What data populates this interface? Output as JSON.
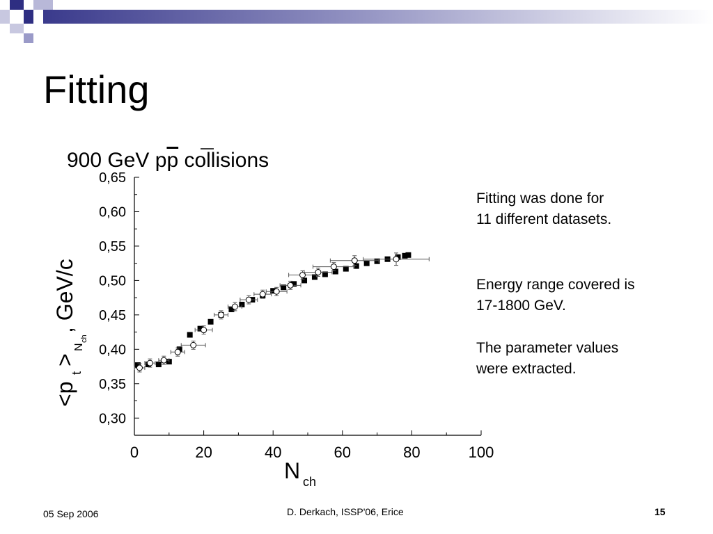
{
  "slide": {
    "title": "Fitting",
    "notes": [
      "Fitting was done for",
      "11 different datasets.",
      "Energy range covered is",
      "17-1800 GeV.",
      "The parameter values",
      "were extracted."
    ],
    "footer": {
      "date": "05 Sep 2006",
      "center": "D. Derkach, ISSP'06, Erice",
      "page": "15"
    },
    "colors": {
      "banner_dark": "#3a3a8c",
      "banner_light": "#c8c8e0"
    }
  },
  "chart_data": {
    "type": "scatter",
    "title": "900 GeV pp collisions",
    "title_overline_on": "p",
    "xlabel": "N",
    "xlabel_sub": "ch",
    "ylabel": "<p",
    "ylabel_sub": "t",
    "ylabel_rest": ">",
    "ylabel_sub2": "N",
    "ylabel_sub3": "ch",
    "ylabel_unit": ", GeV/c",
    "xlim": [
      0,
      100
    ],
    "ylim": [
      0.275,
      0.65
    ],
    "x_ticks": [
      "0",
      "20",
      "40",
      "60",
      "80",
      "100"
    ],
    "y_ticks": [
      "0,30",
      "0,35",
      "0,40",
      "0,45",
      "0,50",
      "0,55",
      "0,60",
      "0,65"
    ],
    "grid": false,
    "series": [
      {
        "marker": "filled-square",
        "points": [
          [
            1,
            0.377
          ],
          [
            4,
            0.378
          ],
          [
            7,
            0.378
          ],
          [
            10,
            0.382
          ],
          [
            13,
            0.4
          ],
          [
            16,
            0.421
          ],
          [
            19,
            0.43
          ],
          [
            22,
            0.44
          ],
          [
            25,
            0.45
          ],
          [
            28,
            0.458
          ],
          [
            31,
            0.465
          ],
          [
            34,
            0.472
          ],
          [
            37,
            0.478
          ],
          [
            40,
            0.485
          ],
          [
            43,
            0.49
          ],
          [
            46,
            0.495
          ],
          [
            49,
            0.5
          ],
          [
            52,
            0.505
          ],
          [
            55,
            0.509
          ],
          [
            58,
            0.513
          ],
          [
            61,
            0.517
          ],
          [
            64,
            0.521
          ],
          [
            67,
            0.525
          ],
          [
            70,
            0.528
          ],
          [
            73,
            0.531
          ],
          [
            76,
            0.534
          ],
          [
            78,
            0.536
          ],
          [
            79,
            0.537
          ]
        ]
      },
      {
        "marker": "open-circle-crossed",
        "points": [
          [
            1.5,
            0.373,
            0.006
          ],
          [
            4.5,
            0.38,
            0.006
          ],
          [
            8.5,
            0.384,
            0.006
          ],
          [
            12.5,
            0.396,
            0.006
          ],
          [
            17,
            0.406,
            0.006
          ],
          [
            20,
            0.428,
            0.006
          ],
          [
            25,
            0.45,
            0.006
          ],
          [
            29,
            0.462,
            0.006
          ],
          [
            33,
            0.472,
            0.006
          ],
          [
            37,
            0.48,
            0.006
          ],
          [
            41,
            0.484,
            0.006
          ],
          [
            45,
            0.493,
            0.006
          ],
          [
            48.5,
            0.508,
            0.006
          ],
          [
            53,
            0.512,
            0.006
          ],
          [
            57.5,
            0.52,
            0.006
          ],
          [
            63.5,
            0.529,
            0.007
          ],
          [
            75.5,
            0.531,
            0.009
          ]
        ],
        "x_errors": [
          [
            1.5,
            1.5
          ],
          [
            4.5,
            1.5
          ],
          [
            8.5,
            1.5
          ],
          [
            12.5,
            2
          ],
          [
            17,
            3.5
          ],
          [
            20,
            2.5
          ],
          [
            25,
            2
          ],
          [
            29,
            2
          ],
          [
            33,
            2.5
          ],
          [
            37,
            2.5
          ],
          [
            41,
            3
          ],
          [
            45,
            3
          ],
          [
            48.5,
            4
          ],
          [
            53,
            4
          ],
          [
            57.5,
            6
          ],
          [
            63.5,
            7
          ],
          [
            75.5,
            9.5
          ]
        ]
      }
    ]
  }
}
